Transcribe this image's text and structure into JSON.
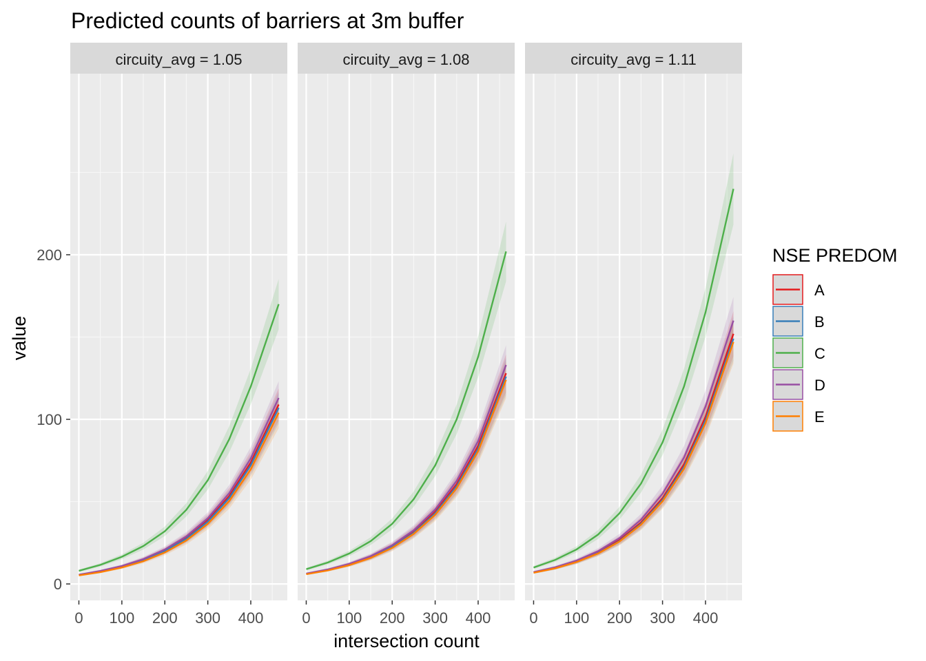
{
  "chart_data": {
    "type": "line",
    "title": "Predicted counts of barriers at 3m buffer",
    "xlabel": "intersection count",
    "ylabel": "value",
    "xlim": [
      -20,
      485
    ],
    "ylim": [
      -10,
      310
    ],
    "x_ticks": [
      0,
      100,
      200,
      300,
      400
    ],
    "y_ticks": [
      0,
      100,
      200
    ],
    "grid": true,
    "legend": {
      "title": "NSE PREDOM",
      "placement": "right",
      "entries": [
        "A",
        "B",
        "C",
        "D",
        "E"
      ]
    },
    "colors": {
      "A": "#E41A1C",
      "B": "#377EB8",
      "C": "#4DAF4A",
      "D": "#984EA3",
      "E": "#FF7F00"
    },
    "x": [
      0,
      50,
      100,
      150,
      200,
      250,
      300,
      350,
      400,
      465
    ],
    "panels": [
      {
        "label": "circuity_avg = 1.05",
        "series": [
          {
            "name": "A",
            "values": [
              5.5,
              7.7,
              10.6,
              14.7,
              20.3,
              28.0,
              38.7,
              53.4,
              73.8,
              109
            ]
          },
          {
            "name": "B",
            "values": [
              5.4,
              7.5,
              10.4,
              14.4,
              19.9,
              27.4,
              37.9,
              52.3,
              72.2,
              107
            ]
          },
          {
            "name": "C",
            "values": [
              8.0,
              11.6,
              16.5,
              23.0,
              32.0,
              45.0,
              63.0,
              88.0,
              120.0,
              170
            ]
          },
          {
            "name": "D",
            "values": [
              5.6,
              7.9,
              10.9,
              15.1,
              20.9,
              28.9,
              39.9,
              55.2,
              76.3,
              113
            ]
          },
          {
            "name": "E",
            "values": [
              5.2,
              7.2,
              10.0,
              13.8,
              19.1,
              26.4,
              36.5,
              50.4,
              69.7,
              104
            ]
          }
        ]
      },
      {
        "label": "circuity_avg = 1.08",
        "series": [
          {
            "name": "A",
            "values": [
              6.2,
              8.6,
              11.9,
              16.5,
              22.9,
              31.7,
              43.8,
              60.6,
              83.9,
              128
            ]
          },
          {
            "name": "B",
            "values": [
              6.1,
              8.4,
              11.7,
              16.2,
              22.4,
              31.0,
              42.9,
              59.4,
              82.2,
              126
            ]
          },
          {
            "name": "C",
            "values": [
              9.0,
              13.0,
              18.5,
              26.0,
              36.5,
              51.5,
              72.0,
              100.0,
              138.0,
              202
            ]
          },
          {
            "name": "D",
            "values": [
              6.3,
              8.8,
              12.2,
              16.9,
              23.5,
              32.6,
              45.2,
              62.6,
              86.8,
              133
            ]
          },
          {
            "name": "E",
            "values": [
              5.9,
              8.2,
              11.4,
              15.8,
              21.9,
              30.4,
              42.0,
              58.2,
              80.6,
              124
            ]
          }
        ]
      },
      {
        "label": "circuity_avg = 1.11",
        "series": [
          {
            "name": "A",
            "values": [
              7.0,
              9.8,
              13.7,
              19.1,
              26.7,
              37.3,
              52.1,
              72.7,
              101.5,
              152
            ]
          },
          {
            "name": "B",
            "values": [
              6.9,
              9.6,
              13.4,
              18.7,
              26.1,
              36.5,
              51.0,
              71.2,
              99.4,
              149
            ]
          },
          {
            "name": "C",
            "values": [
              10.0,
              14.6,
              21.0,
              30.0,
              43.0,
              61.0,
              86.0,
              120.0,
              165.0,
              240
            ]
          },
          {
            "name": "D",
            "values": [
              7.2,
              10.1,
              14.2,
              19.9,
              27.9,
              39.1,
              54.8,
              76.9,
              107.8,
              160
            ]
          },
          {
            "name": "E",
            "values": [
              6.8,
              9.5,
              13.3,
              18.5,
              25.8,
              36.0,
              50.2,
              70.0,
              97.6,
              147
            ]
          }
        ]
      }
    ]
  }
}
